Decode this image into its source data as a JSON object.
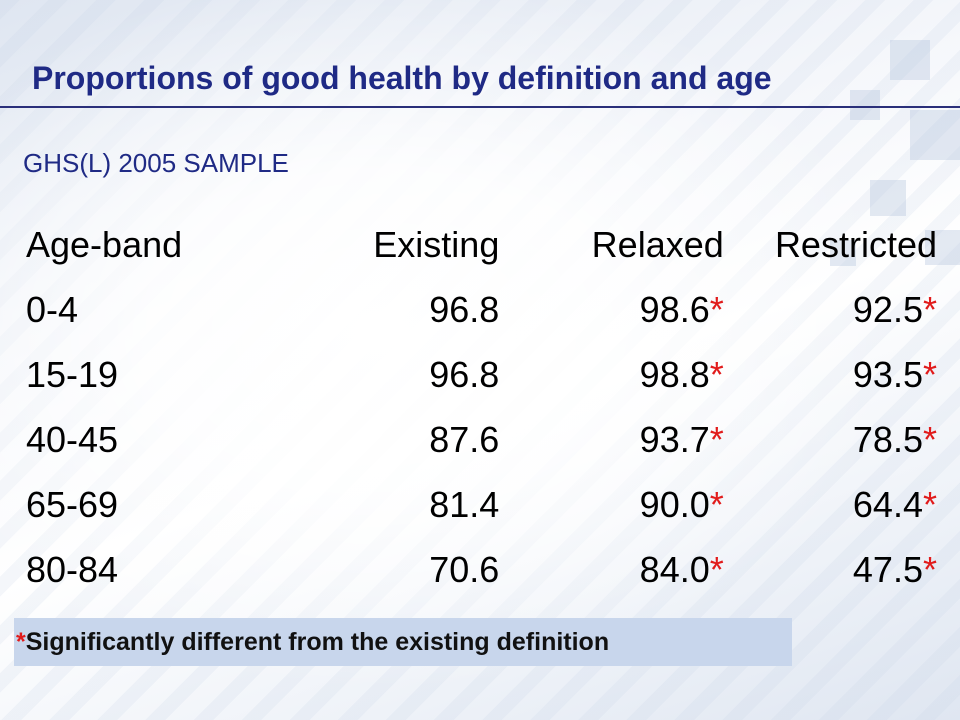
{
  "title": "Proportions of good health by definition and age",
  "subtitle": "GHS(L) 2005 SAMPLE",
  "table": {
    "headers": [
      "Age-band",
      "Existing",
      "Relaxed",
      "Restricted"
    ],
    "rows": [
      {
        "age": "0-4",
        "existing": "96.8",
        "relaxed": "98.6",
        "restricted": "92.5"
      },
      {
        "age": "15-19",
        "existing": "96.8",
        "relaxed": "98.8",
        "restricted": "93.5"
      },
      {
        "age": "40-45",
        "existing": "87.6",
        "relaxed": "93.7",
        "restricted": "78.5"
      },
      {
        "age": "65-69",
        "existing": "81.4",
        "relaxed": "90.0",
        "restricted": "64.4"
      },
      {
        "age": "80-84",
        "existing": "70.6",
        "relaxed": "84.0",
        "restricted": "47.5"
      }
    ],
    "significance_marker": "*"
  },
  "footnote": {
    "marker": "*",
    "text": "Significantly different from the existing definition"
  },
  "colors": {
    "title": "#1f2a85",
    "marker": "#e11b1b",
    "footnote_background": "#c8d6ec"
  }
}
